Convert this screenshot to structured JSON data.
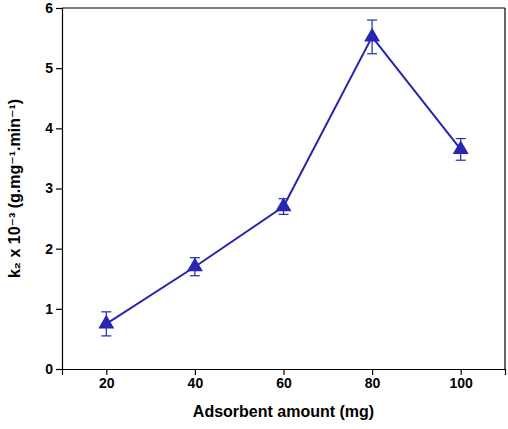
{
  "chart_data": {
    "type": "line",
    "x_label": "Adsorbent amount (mg)",
    "y_label": "k₂ x 10⁻³ (g.mg⁻¹.min⁻¹)",
    "x": [
      20,
      40,
      60,
      80,
      100
    ],
    "values": [
      0.75,
      1.7,
      2.7,
      5.52,
      3.65
    ],
    "errors": [
      0.2,
      0.15,
      0.13,
      0.28,
      0.18
    ],
    "color": "#2626b0",
    "marker": "triangle",
    "line_style": "solid",
    "xlim": [
      10,
      110
    ],
    "xticks": [
      20,
      40,
      60,
      80,
      100
    ],
    "ylim": [
      0,
      6
    ],
    "yticks": [
      0,
      1,
      2,
      3,
      4,
      5,
      6
    ],
    "grid": false
  }
}
